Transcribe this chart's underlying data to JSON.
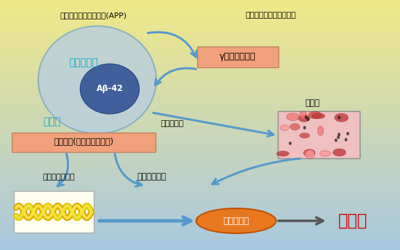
{
  "app_label": "アミロイド前駆体蛋白(APP)",
  "cell_inner_label": "神経細胞内",
  "ab42_label": "Aβ-42",
  "cell_outer_label": "細胞外",
  "nerve_growth_label": "神経の成長と修復の役割",
  "secretase_label": "γセクレターゼ",
  "aggregate_label": "凝集、沈着",
  "senile_plaque_label": "老人班",
  "tau_label": "タウ蛋白(微小管結合蛋白)",
  "phospho_label": "過剰リン酸化",
  "neurofibrillary_label": "神経原繊維変化",
  "nerve_death_label": "神経細胞死",
  "dementia_label": "認知症",
  "outer_ellipse_fc": "#b8cfe0",
  "outer_ellipse_ec": "#7aaac0",
  "inner_circle_fc": "#3a5a98",
  "secretase_box_fc": "#f0a07a",
  "tau_box_fc": "#f0a07a",
  "nerve_death_oval_fc": "#e87820",
  "arrow_color": "#5599cc",
  "cyan_text": "#00aacc",
  "red_text": "#cc0000",
  "fiber_box_fc": "#fffff0",
  "plaque_box_fc": "#f0c0c0"
}
